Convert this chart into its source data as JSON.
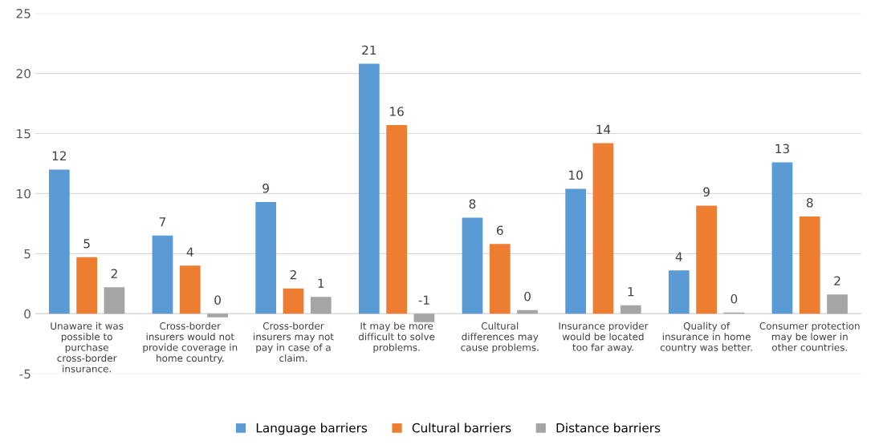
{
  "chart_data": {
    "type": "bar",
    "categories": [
      "Unaware it was possible to purchase cross-border insurance.",
      "Cross-border insurers would not provide coverage in home country.",
      "Cross-border insurers may not pay in case of a claim.",
      "It may be more difficult to solve problems.",
      "Cultural differences may cause problems.",
      "Insurance provider would be located too far away.",
      "Quality of insurance in home country was better.",
      "Consumer protection may be lower in other countries."
    ],
    "series": [
      {
        "name": "Language barriers",
        "color": "#5b9bd5",
        "values": [
          12.0,
          6.5,
          9.3,
          20.8,
          8.0,
          10.4,
          3.6,
          12.6
        ],
        "value_labels": [
          "12",
          "7",
          "9",
          "21",
          "8",
          "10",
          "4",
          "13"
        ]
      },
      {
        "name": "Cultural barriers",
        "color": "#ed7d31",
        "values": [
          4.7,
          4.0,
          2.1,
          15.7,
          5.8,
          14.2,
          9.0,
          8.1
        ],
        "value_labels": [
          "5",
          "4",
          "2",
          "16",
          "6",
          "14",
          "9",
          "8"
        ]
      },
      {
        "name": "Distance barriers",
        "color": "#a5a5a5",
        "values": [
          2.2,
          -0.3,
          1.4,
          -0.7,
          0.3,
          0.7,
          0.1,
          1.6
        ],
        "value_labels": [
          "2",
          "0",
          "1",
          "-1",
          "0",
          "1",
          "0",
          "2"
        ]
      }
    ],
    "ylim": [
      -5,
      25
    ],
    "yticks": [
      -5,
      0,
      5,
      10,
      15,
      20,
      25
    ],
    "grid": "y",
    "legend": "bottom"
  }
}
